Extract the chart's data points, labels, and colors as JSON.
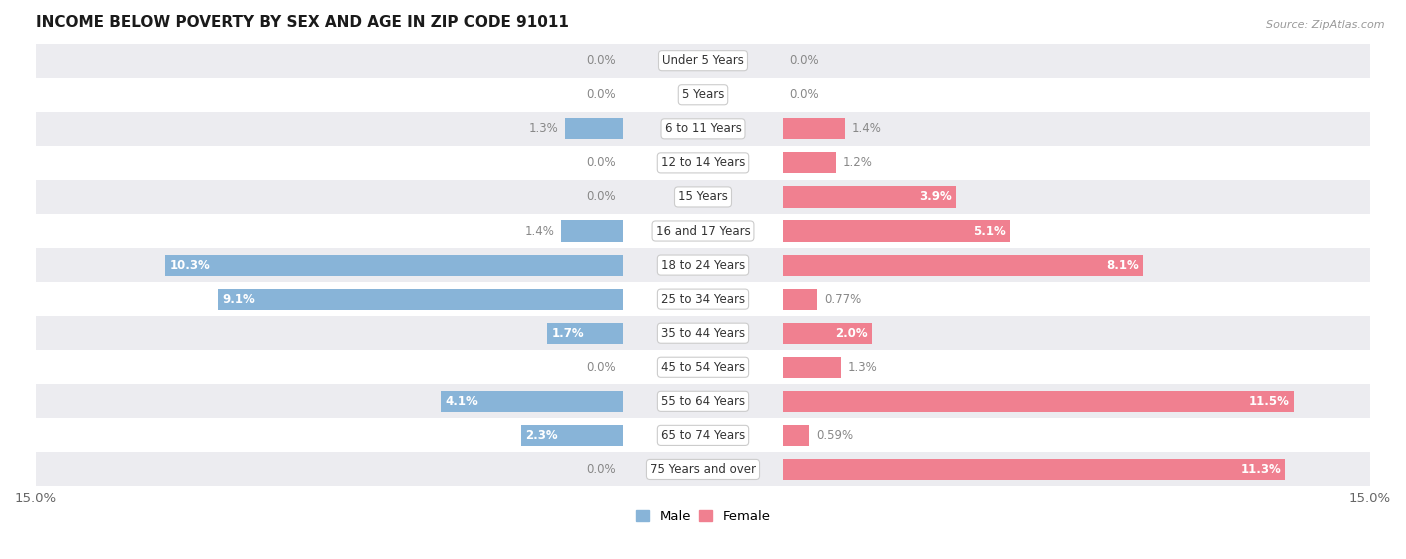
{
  "title": "INCOME BELOW POVERTY BY SEX AND AGE IN ZIP CODE 91011",
  "source": "Source: ZipAtlas.com",
  "categories": [
    "Under 5 Years",
    "5 Years",
    "6 to 11 Years",
    "12 to 14 Years",
    "15 Years",
    "16 and 17 Years",
    "18 to 24 Years",
    "25 to 34 Years",
    "35 to 44 Years",
    "45 to 54 Years",
    "55 to 64 Years",
    "65 to 74 Years",
    "75 Years and over"
  ],
  "male": [
    0.0,
    0.0,
    1.3,
    0.0,
    0.0,
    1.4,
    10.3,
    9.1,
    1.7,
    0.0,
    4.1,
    2.3,
    0.0
  ],
  "female": [
    0.0,
    0.0,
    1.4,
    1.2,
    3.9,
    5.1,
    8.1,
    0.77,
    2.0,
    1.3,
    11.5,
    0.59,
    11.3
  ],
  "male_labels": [
    "0.0%",
    "0.0%",
    "1.3%",
    "0.0%",
    "0.0%",
    "1.4%",
    "10.3%",
    "9.1%",
    "1.7%",
    "0.0%",
    "4.1%",
    "2.3%",
    "0.0%"
  ],
  "female_labels": [
    "0.0%",
    "0.0%",
    "1.4%",
    "1.2%",
    "3.9%",
    "5.1%",
    "8.1%",
    "0.77%",
    "2.0%",
    "1.3%",
    "11.5%",
    "0.59%",
    "11.3%"
  ],
  "xlim": 15.0,
  "male_color": "#88b4d8",
  "female_color": "#f08090",
  "background_row_light": "#ececf0",
  "background_row_white": "#ffffff",
  "title_fontsize": 11,
  "axis_fontsize": 9.5,
  "bar_height": 0.62,
  "label_fontsize": 8.5,
  "cat_fontsize": 8.5,
  "inside_threshold": 1.5
}
